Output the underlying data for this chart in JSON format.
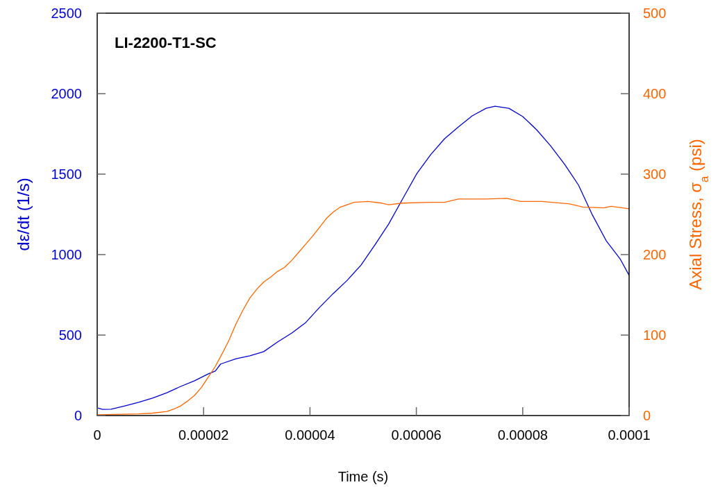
{
  "chart_data": {
    "type": "line",
    "title": "LI-2200-T1-SC",
    "xlabel": "Time (s)",
    "ylabel": "dε/dt (1/s)",
    "y2label": "Axial Stress, σ$_{a}$ (psi)",
    "xlim": [
      0,
      0.0001
    ],
    "xticks": [
      0,
      {
        "value": 2e-05,
        "label": "0.00002"
      },
      {
        "value": 4e-05,
        "label": "0.00004"
      },
      {
        "value": 6e-05,
        "label": "0.00006"
      },
      {
        "value": 8e-05,
        "label": "0.00008"
      },
      0.0001
    ],
    "ylim": [
      0,
      2500
    ],
    "yticks": [
      0,
      500,
      1000,
      1500,
      2000,
      2500
    ],
    "y2lim": [
      0,
      500
    ],
    "y2ticks": [
      0,
      100,
      200,
      300,
      400,
      500
    ],
    "grid": false,
    "marker": "none",
    "line_style": "solid",
    "series": [
      {
        "color": "#0000cc",
        "x": [
          0,
          1e-06,
          2.6e-06,
          5.2e-06,
          7.8e-06,
          1.04e-05,
          1.31e-05,
          1.57e-05,
          1.83e-05,
          2.09e-05,
          2.22e-05,
          2.32e-05,
          2.61e-05,
          2.87e-05,
          3.13e-05,
          3.39e-05,
          3.66e-05,
          3.92e-05,
          4.18e-05,
          4.44e-05,
          4.7e-05,
          4.96e-05,
          5.22e-05,
          5.48e-05,
          5.74e-05,
          6.01e-05,
          6.27e-05,
          6.53e-05,
          6.79e-05,
          7.05e-05,
          7.31e-05,
          7.48e-05,
          7.74e-05,
          8e-05,
          8.26e-05,
          8.52e-05,
          8.79e-05,
          9.05e-05,
          9.31e-05,
          9.57e-05,
          9.83e-05,
          0.0001
        ],
        "values": [
          48,
          38,
          39,
          60,
          82,
          108,
          142,
          181,
          216,
          259,
          276,
          320,
          353,
          371,
          397,
          457,
          513,
          578,
          672,
          759,
          840,
          935,
          1060,
          1190,
          1345,
          1504,
          1621,
          1720,
          1793,
          1862,
          1909,
          1922,
          1909,
          1858,
          1776,
          1677,
          1560,
          1431,
          1246,
          1086,
          974,
          871
        ]
      },
      {
        "color": "#ff6600",
        "axis": "y2",
        "x": [
          0,
          7.8e-06,
          1.04e-05,
          1.31e-05,
          1.44e-05,
          1.57e-05,
          1.7e-05,
          1.83e-05,
          1.96e-05,
          2.09e-05,
          2.22e-05,
          2.35e-05,
          2.48e-05,
          2.61e-05,
          2.74e-05,
          2.87e-05,
          3e-05,
          3.13e-05,
          3.26e-05,
          3.39e-05,
          3.52e-05,
          3.66e-05,
          3.79e-05,
          3.92e-05,
          4.05e-05,
          4.18e-05,
          4.31e-05,
          4.44e-05,
          4.57e-05,
          4.7e-05,
          4.83e-05,
          5.09e-05,
          5.35e-05,
          5.48e-05,
          5.74e-05,
          6.27e-05,
          6.53e-05,
          6.79e-05,
          7.31e-05,
          7.7e-05,
          7.96e-05,
          8.36e-05,
          8.88e-05,
          9.14e-05,
          9.53e-05,
          9.66e-05,
          0.0001
        ],
        "values": [
          1,
          2,
          3,
          5,
          8,
          12,
          18,
          25,
          35,
          48,
          61,
          77,
          94,
          114,
          131,
          146,
          157,
          166,
          172,
          179,
          184,
          193,
          203,
          213,
          223,
          234,
          245,
          253,
          259,
          262,
          265,
          266,
          264,
          262,
          264,
          265,
          265,
          269,
          269,
          270,
          266,
          266,
          263,
          259,
          258,
          260,
          257
        ]
      }
    ]
  }
}
